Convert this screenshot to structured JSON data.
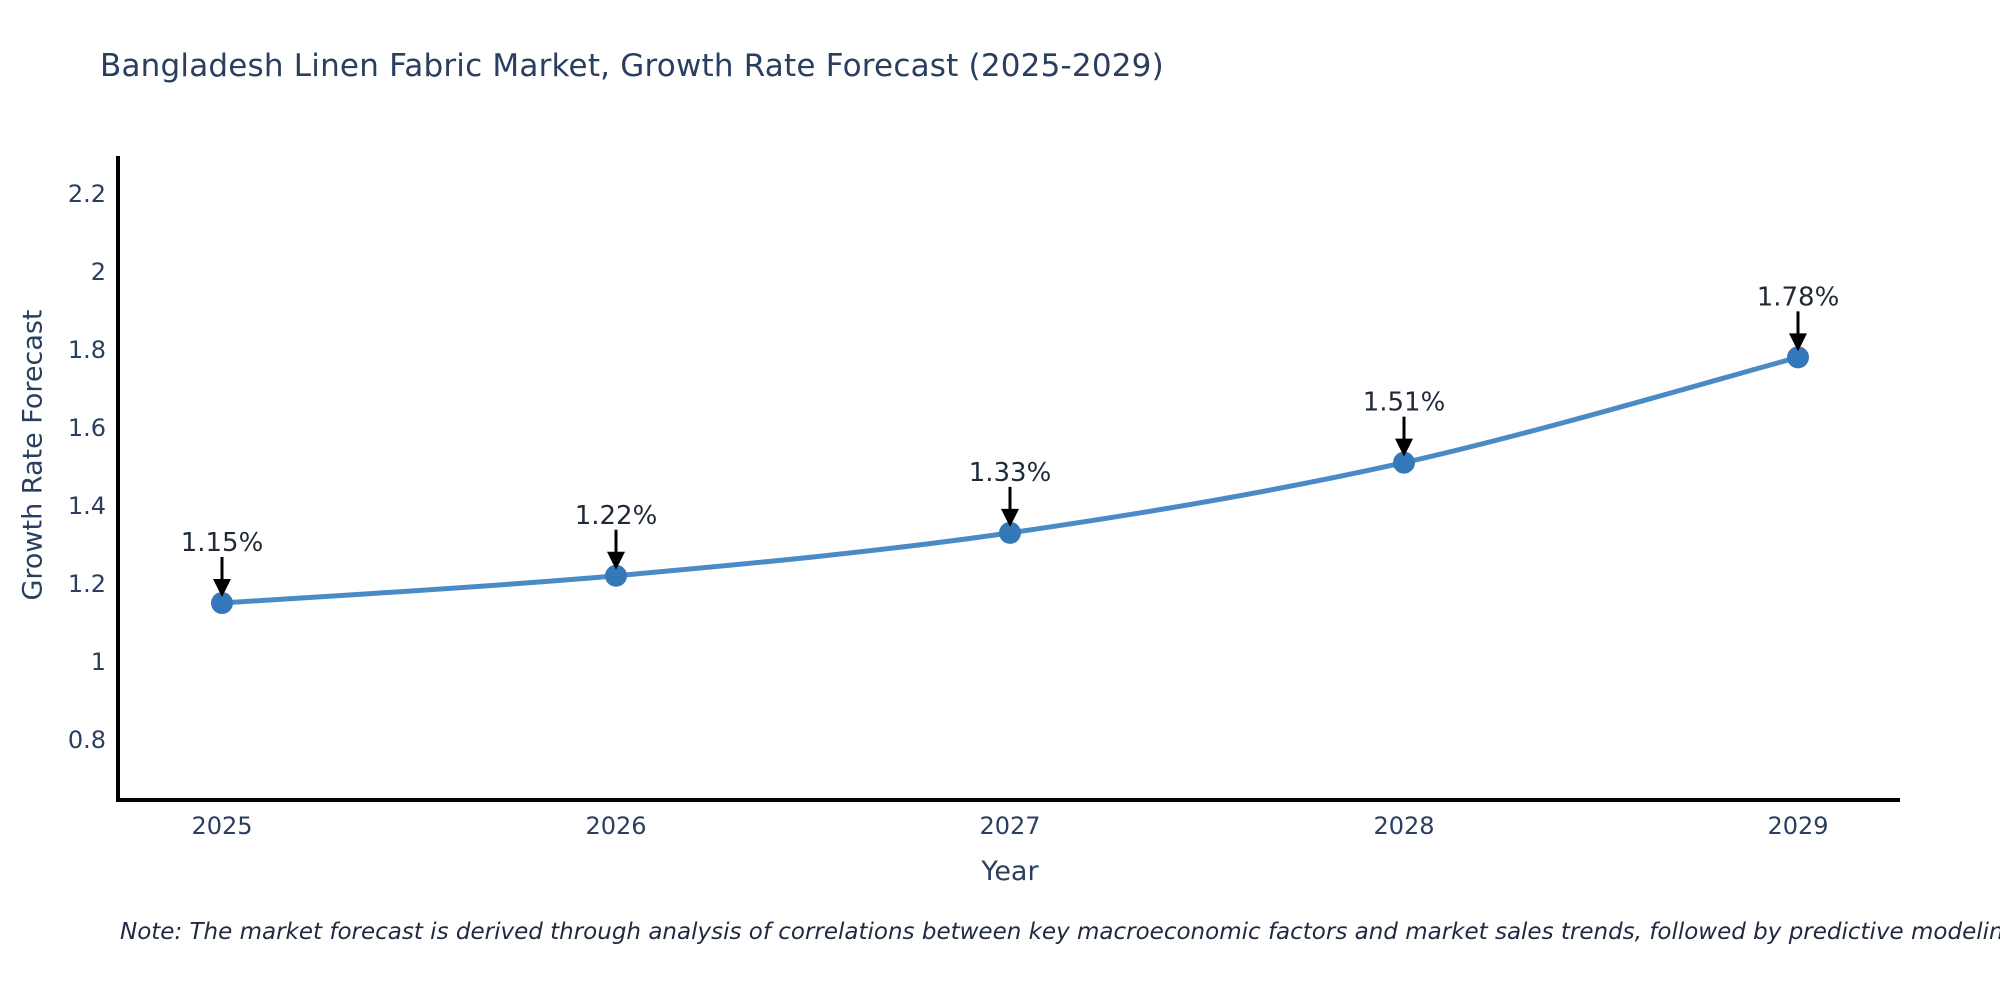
{
  "chart_data": {
    "type": "line",
    "title": "Bangladesh Linen Fabric Market, Growth Rate Forecast (2025-2029)",
    "xlabel": "Year",
    "ylabel": "Growth Rate Forecast",
    "x": [
      "2025",
      "2026",
      "2027",
      "2028",
      "2029"
    ],
    "values": [
      1.15,
      1.22,
      1.33,
      1.51,
      1.78
    ],
    "point_labels": [
      "1.15%",
      "1.22%",
      "1.33%",
      "1.51%",
      "1.78%"
    ],
    "y_ticks": [
      0.8,
      1,
      1.2,
      1.4,
      1.6,
      1.8,
      2,
      2.2
    ],
    "y_tick_labels": [
      "0.8",
      "1",
      "1.2",
      "1.4",
      "1.6",
      "1.8",
      "2",
      "2.2"
    ],
    "ylim": [
      0.645,
      2.295
    ],
    "grid": false,
    "legend": "none",
    "line_color": "#4a8bc6",
    "marker_color": "#3578b9",
    "axis_color": "#000000",
    "tick_text_color": "#2a3f5f",
    "annotation_text_color": "#1f2937",
    "annotation_arrow_color": "#000000",
    "note": "Note: The market forecast is derived through analysis of correlations between key macroeconomic factors and market sales trends, followed by predictive modeling to project future sales"
  }
}
